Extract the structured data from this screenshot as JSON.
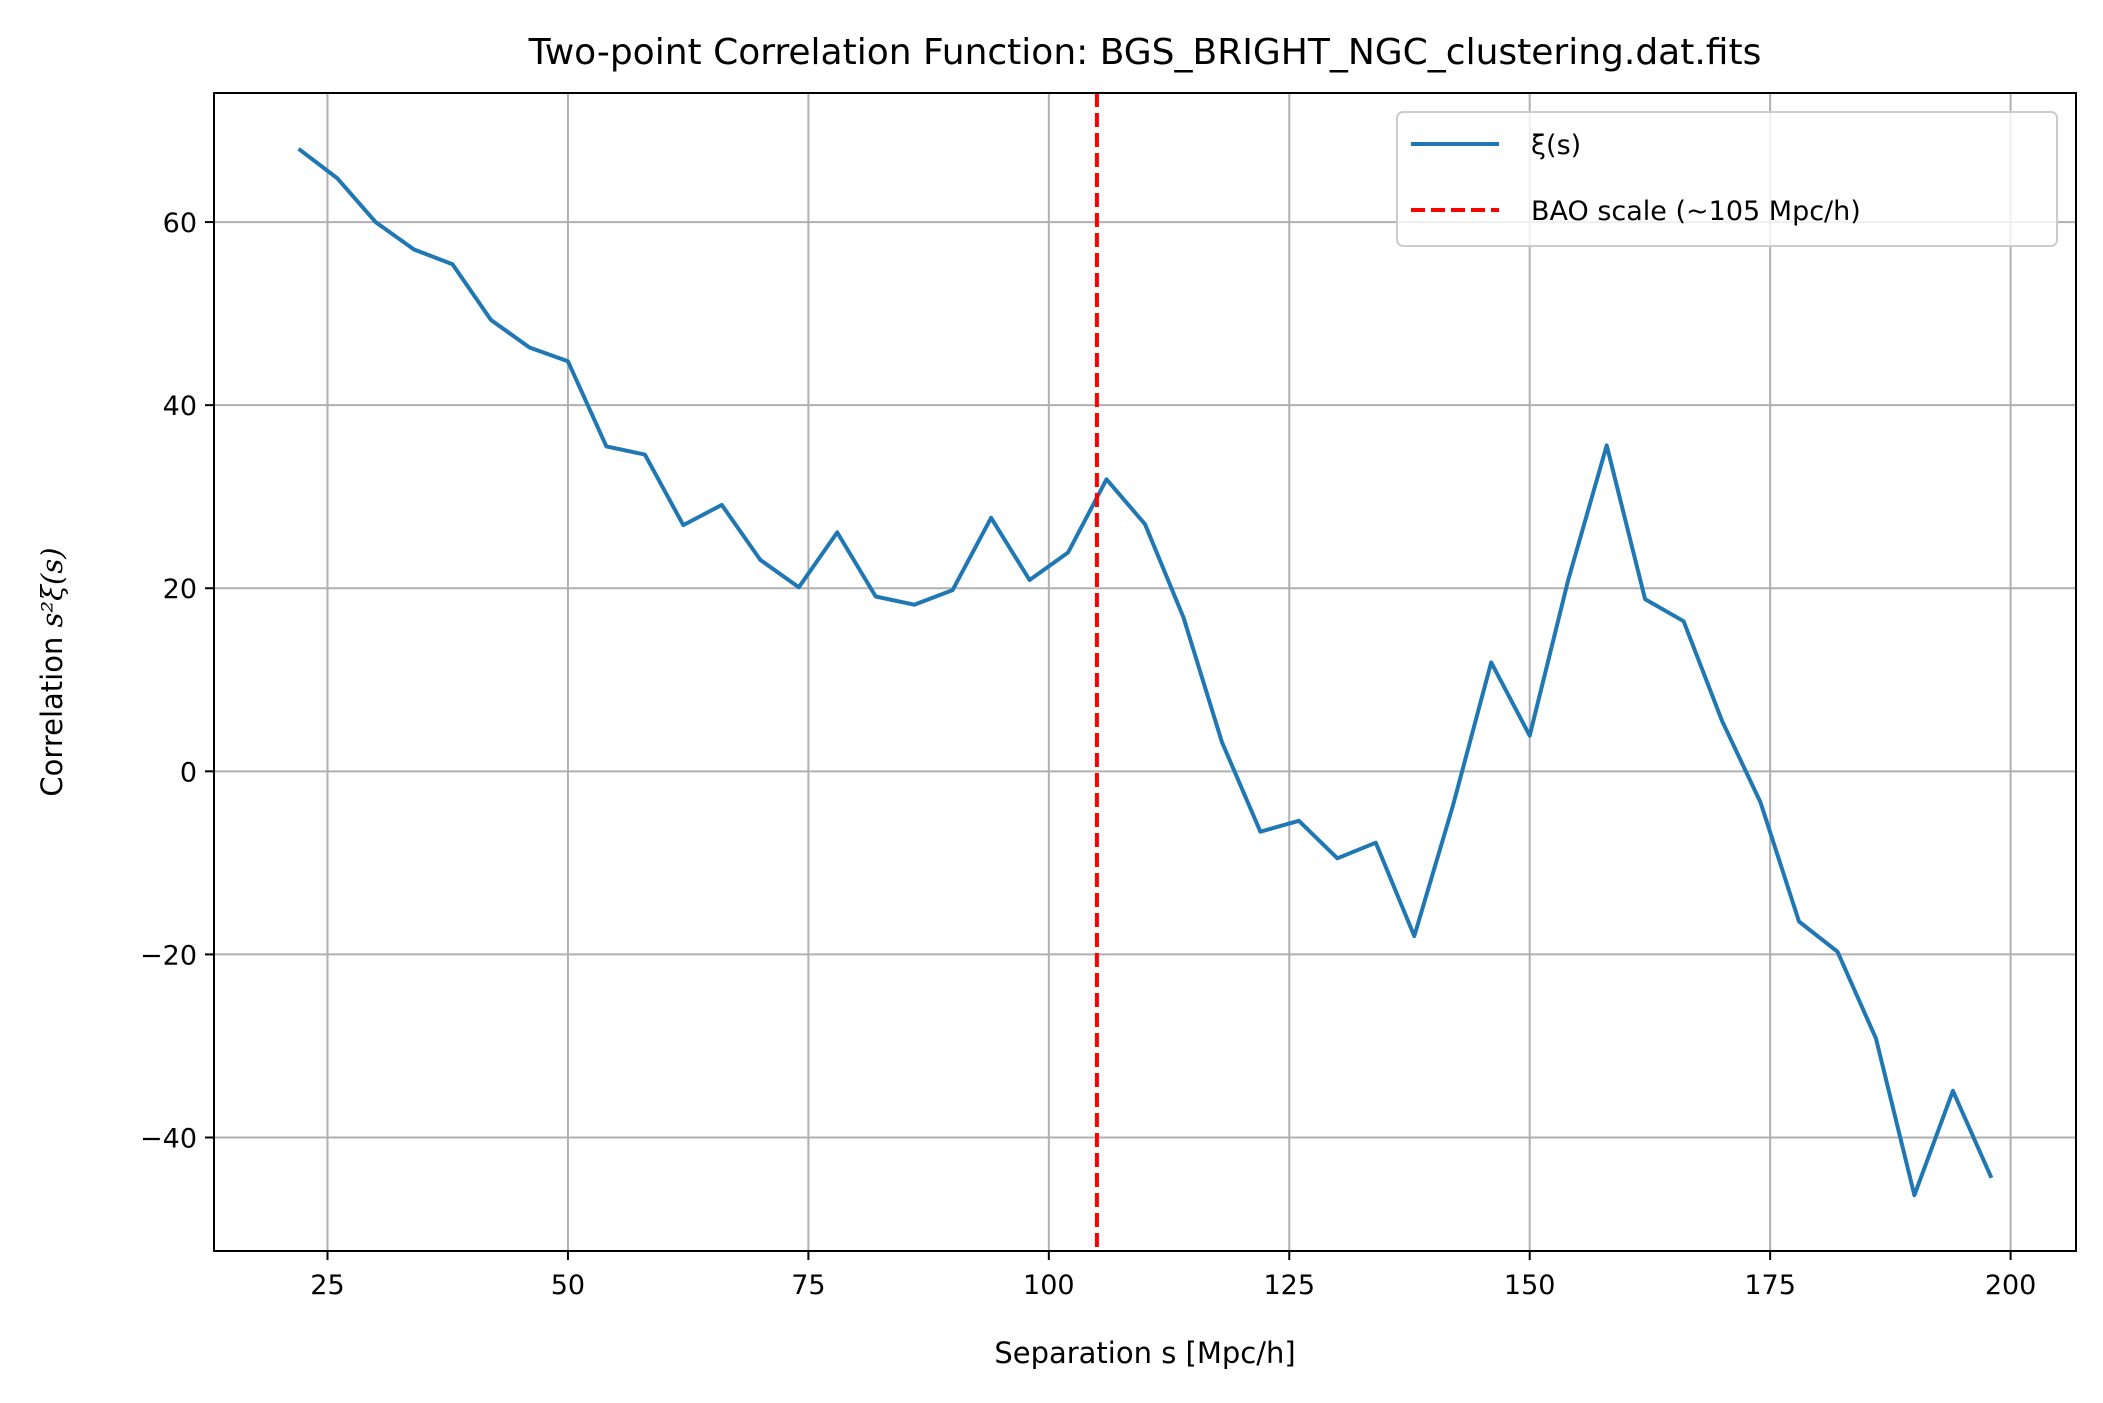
{
  "chart_data": {
    "type": "line",
    "title": "Two-point Correlation Function: BGS_BRIGHT_NGC_clustering.dat.fits",
    "xlabel": "Separation s [Mpc/h]",
    "ylabel_prefix": "Correlation ",
    "ylabel_math": "s²ξ(s)",
    "xlim": [
      13.2,
      206.8
    ],
    "ylim": [
      -52.4,
      74.1
    ],
    "xticks": [
      25,
      50,
      75,
      100,
      125,
      150,
      175,
      200
    ],
    "xtick_labels": [
      "25",
      "50",
      "75",
      "100",
      "125",
      "150",
      "175",
      "200"
    ],
    "yticks": [
      -40,
      -20,
      0,
      20,
      40,
      60
    ],
    "ytick_labels": [
      "−40",
      "−20",
      "0",
      "20",
      "40",
      "60"
    ],
    "grid": true,
    "legend_position": "upper right",
    "series": [
      {
        "name": "ξ(s)",
        "color": "#1f77b4",
        "style": "solid",
        "x": [
          22,
          26,
          30,
          34,
          38,
          42,
          46,
          50,
          54,
          58,
          62,
          66,
          70,
          74,
          78,
          82,
          86,
          90,
          94,
          98,
          102,
          106,
          110,
          114,
          118,
          122,
          126,
          130,
          134,
          138,
          142,
          146,
          150,
          154,
          158,
          162,
          166,
          170,
          174,
          178,
          182,
          186,
          190,
          194,
          198
        ],
        "y": [
          68.0,
          64.8,
          60.0,
          57.0,
          55.4,
          49.3,
          46.3,
          44.8,
          35.5,
          34.6,
          26.9,
          29.1,
          23.1,
          20.1,
          26.1,
          19.1,
          18.2,
          19.8,
          27.7,
          20.9,
          23.9,
          31.9,
          27.0,
          16.8,
          3.2,
          -6.6,
          -5.4,
          -9.5,
          -7.8,
          -18.0,
          -3.8,
          11.9,
          3.9,
          20.9,
          35.6,
          18.8,
          16.4,
          5.5,
          -3.4,
          -16.4,
          -19.7,
          -29.2,
          -46.3,
          -34.9,
          -44.4
        ]
      },
      {
        "name": "BAO scale (~105 Mpc/h)",
        "color": "#ff0000",
        "style": "dashed",
        "type": "vline",
        "x": 105
      }
    ]
  }
}
